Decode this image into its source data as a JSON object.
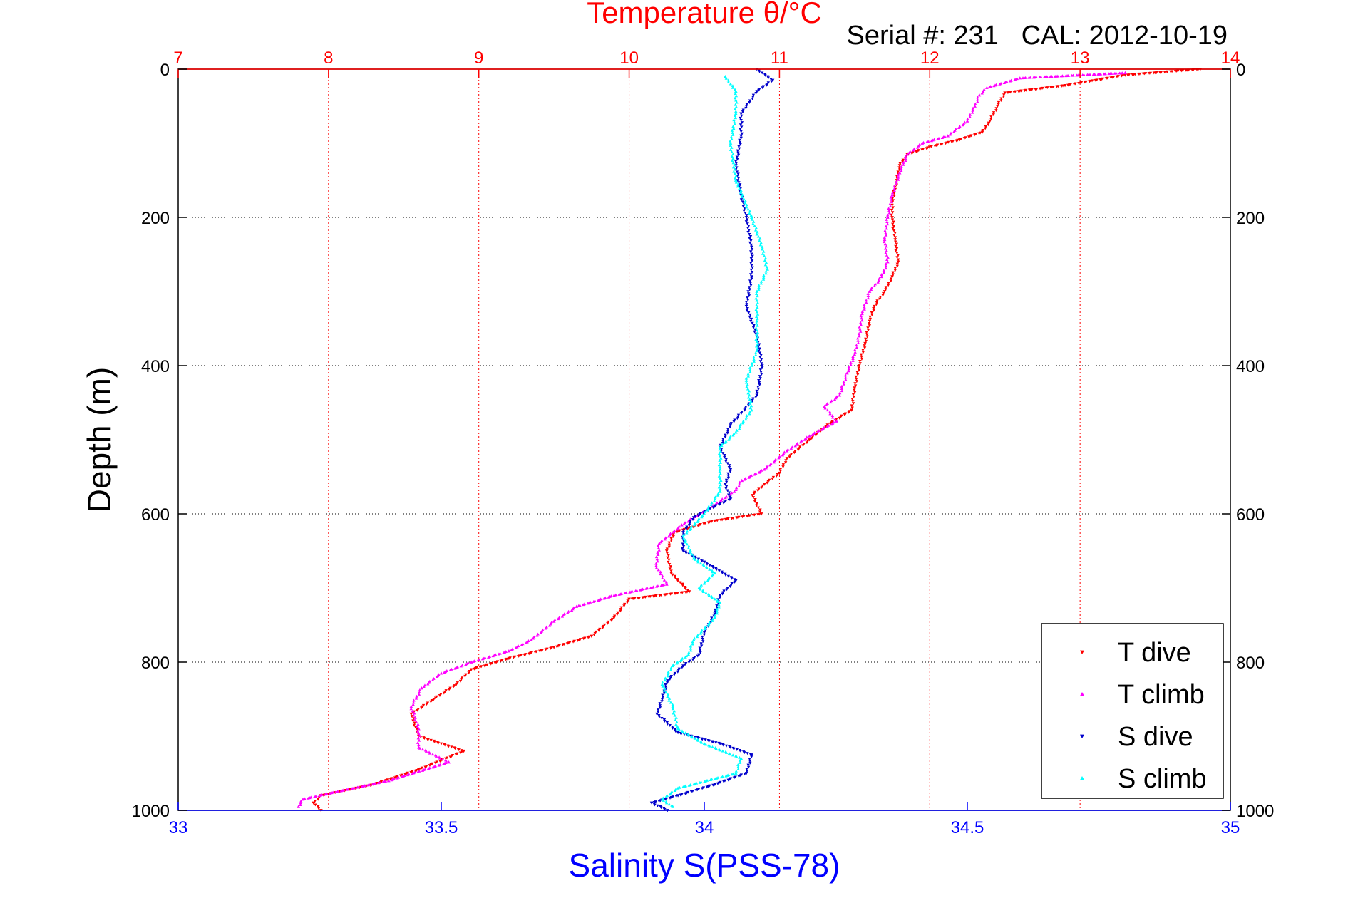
{
  "chart_data": {
    "type": "scatter",
    "title": "Temperature θ/°C",
    "subtitle": "Serial #: 231   CAL: 2012-10-19",
    "xlabel_top": "Temperature θ/°C",
    "xlabel_bottom": "Salinity S(PSS-78)",
    "ylabel": "Depth (m)",
    "x_top_lim": [
      7,
      14
    ],
    "x_top_ticks": [
      "7",
      "8",
      "9",
      "10",
      "11",
      "12",
      "13",
      "14"
    ],
    "x_bottom_lim": [
      33,
      35
    ],
    "x_bottom_ticks": [
      "33",
      "33.5",
      "34",
      "34.5",
      "35"
    ],
    "y_lim": [
      0,
      1000
    ],
    "y_reversed": true,
    "y_ticks": [
      "0",
      "200",
      "400",
      "600",
      "800",
      "1000"
    ],
    "grid": true,
    "legend_position": "bottom-right",
    "colors": {
      "t_dive": "#ff0000",
      "t_climb": "#ff00ff",
      "s_dive": "#0000cc",
      "s_climb": "#00ffff",
      "top_axis": "#ff0000",
      "bottom_axis": "#0000ff"
    },
    "series": [
      {
        "name": "T dive",
        "axis": "temperature",
        "marker": "triangle-down",
        "points": [
          [
            13.8,
            0
          ],
          [
            13.3,
            8
          ],
          [
            12.9,
            22
          ],
          [
            12.5,
            32
          ],
          [
            12.45,
            50
          ],
          [
            12.4,
            70
          ],
          [
            12.35,
            85
          ],
          [
            12.2,
            95
          ],
          [
            12.0,
            105
          ],
          [
            11.85,
            115
          ],
          [
            11.8,
            130
          ],
          [
            11.78,
            150
          ],
          [
            11.75,
            180
          ],
          [
            11.75,
            200
          ],
          [
            11.77,
            230
          ],
          [
            11.79,
            260
          ],
          [
            11.75,
            280
          ],
          [
            11.7,
            300
          ],
          [
            11.63,
            320
          ],
          [
            11.6,
            340
          ],
          [
            11.57,
            370
          ],
          [
            11.53,
            400
          ],
          [
            11.5,
            430
          ],
          [
            11.48,
            460
          ],
          [
            11.32,
            480
          ],
          [
            11.2,
            500
          ],
          [
            11.05,
            525
          ],
          [
            11.0,
            545
          ],
          [
            10.9,
            560
          ],
          [
            10.82,
            575
          ],
          [
            10.88,
            600
          ],
          [
            10.55,
            610
          ],
          [
            10.3,
            625
          ],
          [
            10.25,
            650
          ],
          [
            10.28,
            680
          ],
          [
            10.4,
            705
          ],
          [
            10.0,
            715
          ],
          [
            9.9,
            740
          ],
          [
            9.75,
            765
          ],
          [
            9.5,
            780
          ],
          [
            9.2,
            795
          ],
          [
            8.95,
            810
          ],
          [
            8.85,
            830
          ],
          [
            8.7,
            850
          ],
          [
            8.55,
            870
          ],
          [
            8.6,
            900
          ],
          [
            8.9,
            920
          ],
          [
            8.6,
            945
          ],
          [
            8.3,
            965
          ],
          [
            7.95,
            980
          ],
          [
            7.9,
            990
          ],
          [
            7.95,
            1000
          ]
        ]
      },
      {
        "name": "T climb",
        "axis": "temperature",
        "marker": "triangle-up",
        "points": [
          [
            13.3,
            5
          ],
          [
            12.6,
            12
          ],
          [
            12.38,
            25
          ],
          [
            12.33,
            35
          ],
          [
            12.3,
            50
          ],
          [
            12.25,
            70
          ],
          [
            12.12,
            90
          ],
          [
            11.95,
            100
          ],
          [
            11.85,
            115
          ],
          [
            11.8,
            140
          ],
          [
            11.75,
            170
          ],
          [
            11.72,
            200
          ],
          [
            11.7,
            230
          ],
          [
            11.72,
            260
          ],
          [
            11.68,
            280
          ],
          [
            11.6,
            300
          ],
          [
            11.55,
            330
          ],
          [
            11.53,
            360
          ],
          [
            11.5,
            385
          ],
          [
            11.45,
            410
          ],
          [
            11.4,
            440
          ],
          [
            11.3,
            455
          ],
          [
            11.38,
            475
          ],
          [
            11.2,
            495
          ],
          [
            11.05,
            515
          ],
          [
            10.9,
            540
          ],
          [
            10.75,
            555
          ],
          [
            10.7,
            570
          ],
          [
            10.55,
            590
          ],
          [
            10.35,
            615
          ],
          [
            10.2,
            640
          ],
          [
            10.18,
            670
          ],
          [
            10.25,
            695
          ],
          [
            9.9,
            710
          ],
          [
            9.65,
            725
          ],
          [
            9.5,
            745
          ],
          [
            9.35,
            770
          ],
          [
            9.2,
            785
          ],
          [
            8.95,
            800
          ],
          [
            8.75,
            815
          ],
          [
            8.62,
            835
          ],
          [
            8.55,
            860
          ],
          [
            8.6,
            890
          ],
          [
            8.6,
            915
          ],
          [
            8.8,
            935
          ],
          [
            8.4,
            960
          ],
          [
            8.05,
            975
          ],
          [
            7.83,
            985
          ],
          [
            7.8,
            995
          ]
        ]
      },
      {
        "name": "S dive",
        "axis": "salinity",
        "marker": "triangle-down",
        "points": [
          [
            34.1,
            0
          ],
          [
            34.13,
            15
          ],
          [
            34.1,
            30
          ],
          [
            34.07,
            60
          ],
          [
            34.07,
            90
          ],
          [
            34.06,
            130
          ],
          [
            34.07,
            170
          ],
          [
            34.08,
            200
          ],
          [
            34.09,
            240
          ],
          [
            34.09,
            280
          ],
          [
            34.08,
            320
          ],
          [
            34.1,
            360
          ],
          [
            34.11,
            400
          ],
          [
            34.1,
            440
          ],
          [
            34.05,
            480
          ],
          [
            34.03,
            510
          ],
          [
            34.05,
            540
          ],
          [
            34.04,
            560
          ],
          [
            34.05,
            580
          ],
          [
            34.02,
            590
          ],
          [
            33.98,
            605
          ],
          [
            33.96,
            625
          ],
          [
            33.96,
            650
          ],
          [
            34.0,
            665
          ],
          [
            34.06,
            690
          ],
          [
            34.03,
            710
          ],
          [
            34.02,
            735
          ],
          [
            34.0,
            760
          ],
          [
            33.99,
            790
          ],
          [
            33.96,
            805
          ],
          [
            33.93,
            825
          ],
          [
            33.92,
            850
          ],
          [
            33.91,
            870
          ],
          [
            33.95,
            895
          ],
          [
            34.03,
            910
          ],
          [
            34.09,
            925
          ],
          [
            34.08,
            950
          ],
          [
            34.02,
            965
          ],
          [
            33.95,
            980
          ],
          [
            33.9,
            990
          ],
          [
            33.93,
            1000
          ]
        ]
      },
      {
        "name": "S climb",
        "axis": "salinity",
        "marker": "triangle-up",
        "points": [
          [
            34.04,
            10
          ],
          [
            34.06,
            30
          ],
          [
            34.06,
            60
          ],
          [
            34.05,
            100
          ],
          [
            34.06,
            150
          ],
          [
            34.09,
            200
          ],
          [
            34.11,
            240
          ],
          [
            34.12,
            270
          ],
          [
            34.1,
            300
          ],
          [
            34.1,
            340
          ],
          [
            34.1,
            380
          ],
          [
            34.08,
            420
          ],
          [
            34.09,
            460
          ],
          [
            34.06,
            490
          ],
          [
            34.03,
            510
          ],
          [
            34.03,
            540
          ],
          [
            34.03,
            570
          ],
          [
            34.0,
            600
          ],
          [
            33.96,
            630
          ],
          [
            33.98,
            660
          ],
          [
            34.02,
            680
          ],
          [
            33.99,
            700
          ],
          [
            34.03,
            720
          ],
          [
            34.02,
            740
          ],
          [
            33.98,
            770
          ],
          [
            33.97,
            790
          ],
          [
            33.94,
            805
          ],
          [
            33.92,
            830
          ],
          [
            33.94,
            860
          ],
          [
            33.95,
            890
          ],
          [
            34.0,
            910
          ],
          [
            34.07,
            930
          ],
          [
            34.06,
            950
          ],
          [
            33.95,
            970
          ],
          [
            33.92,
            985
          ],
          [
            33.94,
            995
          ]
        ]
      }
    ]
  }
}
